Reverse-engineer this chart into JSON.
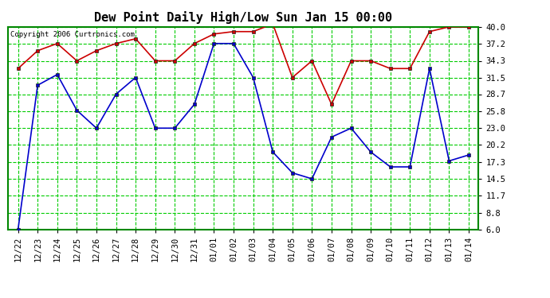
{
  "title": "Dew Point Daily High/Low Sun Jan 15 00:00",
  "copyright": "Copyright 2006 Curtronics.com",
  "labels": [
    "12/22",
    "12/23",
    "12/24",
    "12/25",
    "12/26",
    "12/27",
    "12/28",
    "12/29",
    "12/30",
    "12/31",
    "01/01",
    "01/02",
    "01/03",
    "01/04",
    "01/05",
    "01/06",
    "01/07",
    "01/08",
    "01/09",
    "01/10",
    "01/11",
    "01/12",
    "01/13",
    "01/14"
  ],
  "high": [
    33.0,
    36.0,
    37.2,
    34.3,
    36.0,
    37.2,
    38.0,
    34.3,
    34.3,
    37.2,
    38.8,
    39.2,
    39.2,
    40.5,
    31.5,
    34.3,
    27.0,
    34.3,
    34.3,
    33.0,
    33.0,
    39.2,
    40.0,
    40.0
  ],
  "low": [
    6.0,
    30.2,
    32.0,
    26.0,
    23.0,
    28.7,
    31.5,
    23.0,
    23.0,
    27.0,
    37.2,
    37.2,
    31.5,
    19.0,
    15.5,
    14.5,
    21.5,
    23.0,
    19.0,
    16.5,
    16.5,
    33.0,
    17.5,
    18.5
  ],
  "high_color": "#cc0000",
  "low_color": "#0000cc",
  "bg_color": "#ffffff",
  "plot_bg_color": "#ffffff",
  "grid_color": "#00cc00",
  "border_color": "#008800",
  "title_fontsize": 11,
  "tick_fontsize": 7.5,
  "ylim_min": 6.0,
  "ylim_max": 40.0,
  "yticks": [
    6.0,
    8.8,
    11.7,
    14.5,
    17.3,
    20.2,
    23.0,
    25.8,
    28.7,
    31.5,
    34.3,
    37.2,
    40.0
  ]
}
